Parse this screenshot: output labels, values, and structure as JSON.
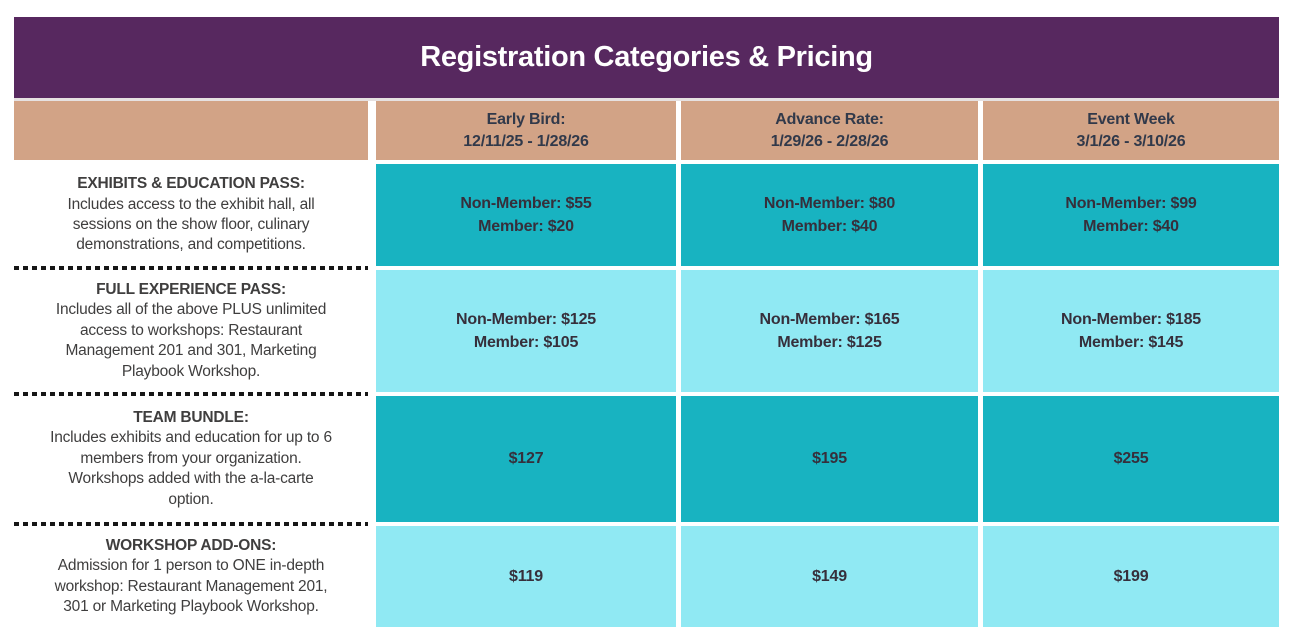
{
  "chart_data": {
    "type": "table",
    "title": "Registration Categories & Pricing",
    "columns": [
      {
        "label": "Early Bird:\n12/11/25 - 1/28/26"
      },
      {
        "label": "Advance Rate:\n1/29/26 - 2/28/26"
      },
      {
        "label": "Event Week\n3/1/26 - 3/10/26"
      }
    ],
    "rows": [
      {
        "name": "EXHIBITS & EDUCATION PASS:",
        "description": "Includes access to the exhibit hall, all\nsessions on the show floor, culinary\ndemonstrations, and competitions.",
        "prices": [
          "Non-Member: $55\nMember: $20",
          "Non-Member: $80\nMember: $40",
          "Non-Member: $99\nMember: $40"
        ]
      },
      {
        "name": "FULL EXPERIENCE PASS:",
        "description": "Includes all of the above PLUS unlimited\naccess to workshops: Restaurant\nManagement 201 and 301, Marketing\nPlaybook Workshop.",
        "prices": [
          "Non-Member: $125\nMember: $105",
          "Non-Member: $165\nMember: $125",
          "Non-Member: $185\nMember: $145"
        ]
      },
      {
        "name": "TEAM BUNDLE:",
        "description": "Includes exhibits and education for up to 6\nmembers from your organization.\nWorkshops added with the a-la-carte\noption.",
        "prices": [
          "$127",
          "$195",
          "$255"
        ]
      },
      {
        "name": "WORKSHOP ADD-ONS:",
        "description": "Admission for 1 person to ONE in-depth\nworkshop: Restaurant Management 201,\n301 or Marketing Playbook Workshop.",
        "prices": [
          "$119",
          "$149",
          "$199"
        ]
      }
    ]
  },
  "colors": {
    "header_purple": "#57285f",
    "column_tan": "#d2a386",
    "row_teal": "#18b3c1",
    "row_cyan": "#90e9f3",
    "title_text": "#ffffff",
    "header_text": "#31394a",
    "price_text": "#362f3b",
    "label_text": "#3f3e3e"
  }
}
